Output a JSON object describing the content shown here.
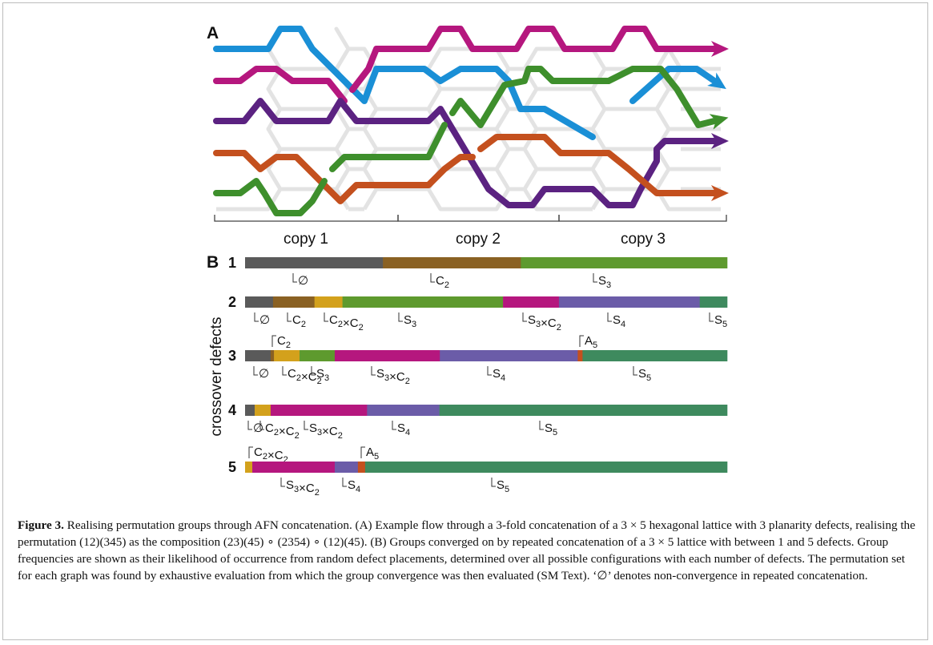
{
  "figure": {
    "panel_a_label": "A",
    "panel_b_label": "B",
    "copy_labels": [
      "copy 1",
      "copy 2",
      "copy 3"
    ],
    "y_axis_title": "crossover defects",
    "caption_label": "Figure 3.",
    "caption_text": "Realising permutation groups through AFN concatenation. (A) Example flow through a 3-fold concatenation of a 3 × 5 hexagonal lattice with 3 planarity defects, realising the permutation (12)(345) as the composition (23)(45) ∘ (2354) ∘ (12)(45). (B) Groups converged on by repeated concatenation of a 3 × 5 lattice with between 1 and 5 defects. Group frequencies are shown as their likelihood of occurrence from random defect placements, determined over all possible configurations with each number of defects. The permutation set for each graph was found by exhaustive evaluation from which the group convergence was then evaluated (SM Text). ‘∅’ denotes non-convergence in repeated concatenation."
  },
  "colors": {
    "blue": "#1a8fd6",
    "magenta": "#b5177e",
    "purple": "#5b2281",
    "orange": "#c4501e",
    "green": "#3e8f2c",
    "lattice": "#e3e3e3",
    "none": "#5a5a5a",
    "C2": "#8a6123",
    "C2xC2": "#d3a11c",
    "S3": "#5e9a2e",
    "S3xC2": "#b5177e",
    "S4": "#6b5ca8",
    "A5": "#c4501e",
    "S5": "#3e8a5e"
  },
  "chart_data": {
    "type": "bar",
    "orientation": "horizontal-stacked",
    "y_axis_title": "crossover defects",
    "rows": [
      {
        "defects": "1",
        "segments": [
          {
            "group": "∅",
            "fraction": 0.286
          },
          {
            "group": "C2",
            "fraction": 0.286
          },
          {
            "group": "S3",
            "fraction": 0.428
          }
        ]
      },
      {
        "defects": "2",
        "segments": [
          {
            "group": "∅",
            "fraction": 0.058
          },
          {
            "group": "C2",
            "fraction": 0.086
          },
          {
            "group": "C2×C2",
            "fraction": 0.058
          },
          {
            "group": "S3",
            "fraction": 0.333
          },
          {
            "group": "S3×C2",
            "fraction": 0.116
          },
          {
            "group": "S4",
            "fraction": 0.292
          },
          {
            "group": "S5",
            "fraction": 0.057
          }
        ]
      },
      {
        "defects": "3",
        "segments": [
          {
            "group": "∅",
            "fraction": 0.053
          },
          {
            "group": "C2",
            "fraction": 0.007
          },
          {
            "group": "C2×C2",
            "fraction": 0.053
          },
          {
            "group": "S3",
            "fraction": 0.073
          },
          {
            "group": "S3×C2",
            "fraction": 0.218
          },
          {
            "group": "S4",
            "fraction": 0.286
          },
          {
            "group": "A5",
            "fraction": 0.01
          },
          {
            "group": "S5",
            "fraction": 0.3
          }
        ]
      },
      {
        "defects": "4",
        "segments": [
          {
            "group": "∅",
            "fraction": 0.02
          },
          {
            "group": "C2×C2",
            "fraction": 0.033
          },
          {
            "group": "S3×C2",
            "fraction": 0.2
          },
          {
            "group": "S4",
            "fraction": 0.15
          },
          {
            "group": "S5",
            "fraction": 0.597
          }
        ]
      },
      {
        "defects": "5",
        "segments": [
          {
            "group": "C2×C2",
            "fraction": 0.015
          },
          {
            "group": "S3×C2",
            "fraction": 0.171
          },
          {
            "group": "S4",
            "fraction": 0.048
          },
          {
            "group": "A5",
            "fraction": 0.015
          },
          {
            "group": "S5",
            "fraction": 0.751
          }
        ]
      }
    ]
  }
}
